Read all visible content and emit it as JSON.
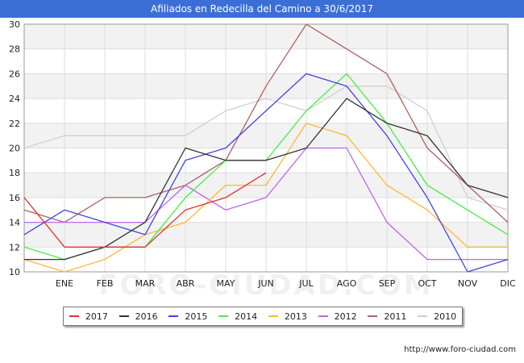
{
  "title": "Afiliados en Redecilla del Camino a 30/6/2017",
  "watermark": "FORO-CIUDAD.COM",
  "source_url": "http://www.foro-ciudad.com",
  "chart_data": {
    "type": "line",
    "categories": [
      "",
      "ENE",
      "FEB",
      "MAR",
      "ABR",
      "MAY",
      "JUN",
      "JUL",
      "AGO",
      "SEP",
      "OCT",
      "NOV",
      "DIC"
    ],
    "ylim": [
      10,
      30
    ],
    "yticks": [
      10,
      12,
      14,
      16,
      18,
      20,
      22,
      24,
      26,
      28,
      30
    ],
    "grid": true,
    "legend_position": "bottom",
    "series": [
      {
        "name": "2017",
        "color": "#e03030",
        "values": [
          16,
          12,
          12,
          12,
          15,
          16,
          18,
          null,
          null,
          null,
          null,
          null,
          null
        ]
      },
      {
        "name": "2016",
        "color": "#333333",
        "values": [
          11,
          11,
          12,
          14,
          20,
          19,
          19,
          20,
          24,
          22,
          21,
          17,
          16
        ]
      },
      {
        "name": "2015",
        "color": "#4444dd",
        "values": [
          13,
          15,
          14,
          13,
          19,
          20,
          23,
          26,
          25,
          21,
          16,
          10,
          11
        ]
      },
      {
        "name": "2014",
        "color": "#44ee44",
        "values": [
          12,
          11,
          12,
          12,
          16,
          19,
          19,
          23,
          26,
          22,
          17,
          15,
          13
        ]
      },
      {
        "name": "2013",
        "color": "#ffb732",
        "values": [
          11,
          10,
          11,
          13,
          14,
          17,
          17,
          22,
          21,
          17,
          15,
          12,
          12
        ]
      },
      {
        "name": "2012",
        "color": "#bb66ee",
        "values": [
          14,
          14,
          14,
          14,
          17,
          15,
          16,
          20,
          20,
          14,
          11,
          11,
          11
        ]
      },
      {
        "name": "2011",
        "color": "#b06060",
        "values": [
          15,
          14,
          16,
          16,
          17,
          19,
          25,
          30,
          28,
          26,
          20,
          17,
          14
        ]
      },
      {
        "name": "2010",
        "color": "#d0d0d0",
        "values": [
          20,
          21,
          21,
          21,
          21,
          23,
          24,
          23,
          25,
          25,
          23,
          16,
          15
        ]
      }
    ]
  }
}
